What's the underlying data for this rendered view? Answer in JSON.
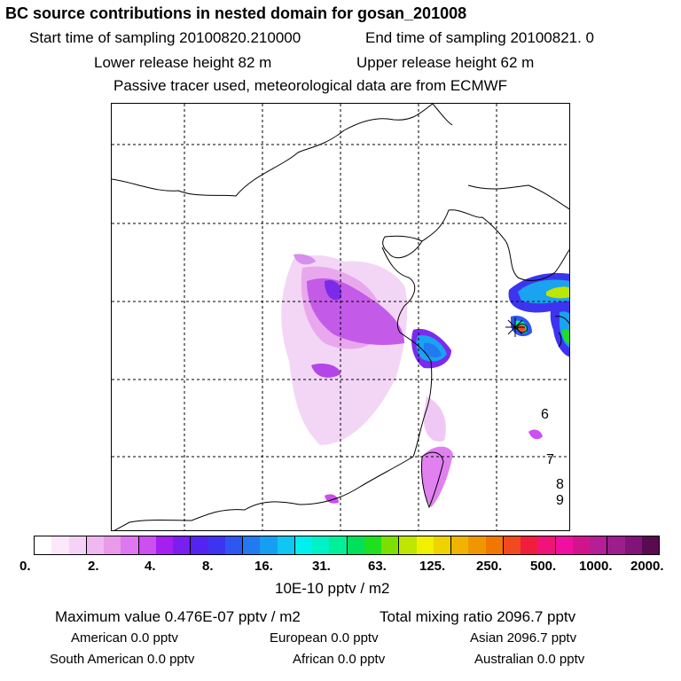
{
  "header": {
    "title": "BC  source contributions in nested domain for gosan_201008",
    "start_sampling": "Start time of sampling 20100820.210000",
    "end_sampling": "End time of sampling 20100821.     0",
    "lower_release": "Lower release height   82 m",
    "upper_release": "Upper release height   62 m",
    "tracer_note": "Passive tracer used, meteorological data are from ECMWF"
  },
  "map": {
    "site_marker": "receptor-star",
    "labels": [
      "6",
      "7",
      "8",
      "9"
    ]
  },
  "colorbar": {
    "colors": [
      "#ffffff",
      "#fbe8fb",
      "#f6d2f6",
      "#f0b8f0",
      "#e99ae9",
      "#df78f0",
      "#cc4ff0",
      "#a61ef0",
      "#7b1ef0",
      "#5523f0",
      "#3d34f0",
      "#2f56f0",
      "#2279f0",
      "#169ef0",
      "#0fc7f0",
      "#00f0f0",
      "#00f0c8",
      "#00f09a",
      "#00e05a",
      "#1ee01e",
      "#7be000",
      "#bfe600",
      "#f0f000",
      "#f0d200",
      "#f0b400",
      "#f09600",
      "#f07800",
      "#f04a1e",
      "#f01e3c",
      "#f0147a",
      "#f00fa0",
      "#d2148c",
      "#b41e96",
      "#9c1e8c",
      "#821478",
      "#5a0a50"
    ],
    "tick_labels": [
      "0.",
      "2.",
      "4.",
      "8.",
      "16.",
      "31.",
      "63.",
      "125.",
      "250.",
      "500.",
      "1000.",
      "2000."
    ],
    "unit": "10E-10 pptv / m2"
  },
  "summary": {
    "max_value": "Maximum value  0.476E-07 pptv / m2",
    "total_mixing": "Total mixing ratio     2096.7 pptv",
    "american": "American         0.0 pptv",
    "european": "European         0.0 pptv",
    "asian": "Asian     2096.7 pptv",
    "south_american": "South American         0.0 pptv",
    "african": "African         0.0 pptv",
    "australian": "Australian         0.0 pptv"
  }
}
